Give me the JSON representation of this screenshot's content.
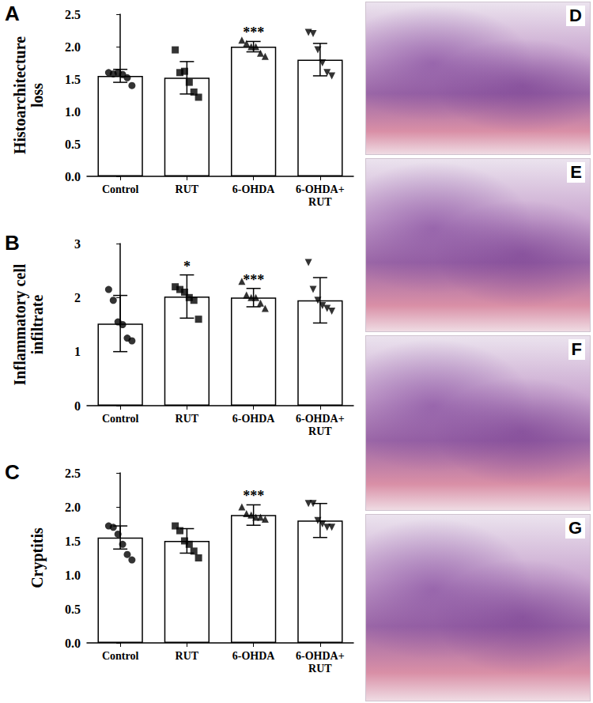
{
  "chart_data": [
    {
      "type": "bar",
      "panel": "A",
      "ylabel": "Histoarchitecture loss",
      "categories": [
        "Control",
        "RUT",
        "6-OHDA",
        "6-OHDA+RUT"
      ],
      "values": [
        1.55,
        1.52,
        2.0,
        1.8
      ],
      "errors": [
        0.1,
        0.25,
        0.08,
        0.25
      ],
      "points": [
        [
          1.6,
          1.58,
          1.6,
          1.57,
          1.52,
          1.4
        ],
        [
          1.95,
          1.6,
          1.62,
          1.45,
          1.3,
          1.22
        ],
        [
          2.1,
          2.05,
          2.0,
          2.0,
          1.9,
          1.85
        ],
        [
          2.22,
          2.2,
          1.95,
          1.75,
          1.6,
          1.55
        ]
      ],
      "annotations": [
        null,
        null,
        "***",
        null
      ],
      "color": "#000000",
      "ylim": [
        0,
        2.5
      ],
      "yticks": [
        {
          "value": 0,
          "label": "0.0"
        },
        0.5,
        {
          "value": 1,
          "label": "1.0"
        },
        1.5,
        {
          "value": 2,
          "label": "2.0"
        },
        2.5
      ],
      "grid": false
    },
    {
      "type": "bar",
      "panel": "B",
      "ylabel": "Inflammatory cell infiltrate",
      "categories": [
        "Control",
        "RUT",
        "6-OHDA",
        "6-OHDA+RUT"
      ],
      "values": [
        1.52,
        2.02,
        2.0,
        1.95
      ],
      "errors": [
        0.52,
        0.4,
        0.17,
        0.42
      ],
      "points": [
        [
          2.15,
          1.95,
          1.55,
          1.5,
          1.25,
          1.2
        ],
        [
          2.2,
          2.15,
          2.1,
          2.0,
          1.95,
          1.6
        ],
        [
          2.3,
          2.05,
          2.0,
          2.0,
          1.9,
          1.8
        ],
        [
          2.65,
          2.15,
          1.95,
          1.85,
          1.8,
          1.75
        ]
      ],
      "annotations": [
        null,
        "*",
        "***",
        null
      ],
      "color": "#000000",
      "ylim": [
        0,
        3
      ],
      "yticks": [
        0,
        1,
        2,
        3
      ],
      "grid": false
    },
    {
      "type": "bar",
      "panel": "C",
      "ylabel": "Cryptitis",
      "categories": [
        "Control",
        "RUT",
        "6-OHDA",
        "6-OHDA+RUT"
      ],
      "values": [
        1.55,
        1.5,
        1.88,
        1.8
      ],
      "errors": [
        0.17,
        0.18,
        0.15,
        0.25
      ],
      "points": [
        [
          1.72,
          1.7,
          1.6,
          1.45,
          1.3,
          1.22
        ],
        [
          1.72,
          1.65,
          1.5,
          1.45,
          1.35,
          1.25
        ],
        [
          2.0,
          1.9,
          1.88,
          1.85,
          1.85,
          1.82
        ],
        [
          2.05,
          2.05,
          1.8,
          1.75,
          1.7,
          1.7
        ]
      ],
      "annotations": [
        null,
        null,
        "***",
        null
      ],
      "color": "#000000",
      "ylim": [
        0,
        2.5
      ],
      "yticks": [
        {
          "value": 0,
          "label": "0.0"
        },
        0.5,
        {
          "value": 1,
          "label": "1.0"
        },
        1.5,
        {
          "value": 2,
          "label": "2.0"
        },
        2.5
      ],
      "grid": false
    }
  ],
  "image_panels": [
    {
      "panel": "D"
    },
    {
      "panel": "E"
    },
    {
      "panel": "F"
    },
    {
      "panel": "G"
    }
  ]
}
